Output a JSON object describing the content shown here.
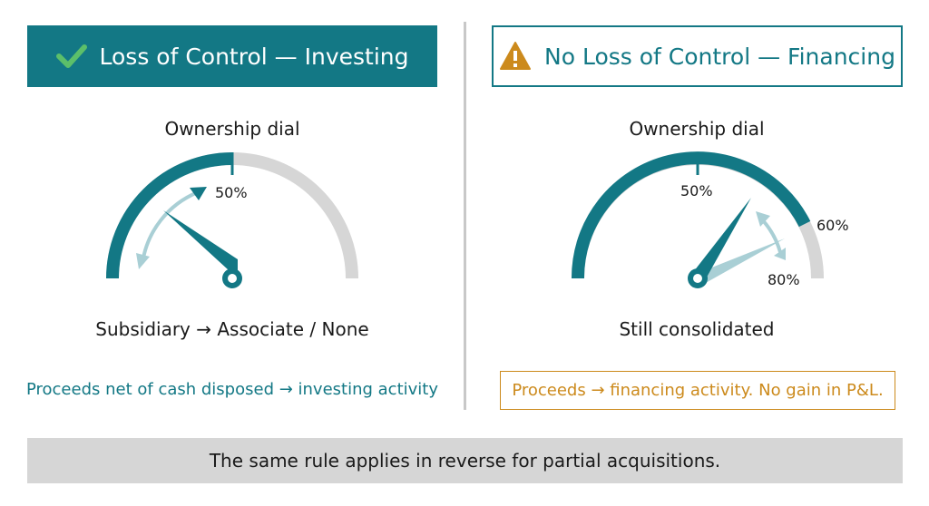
{
  "left": {
    "header": "Loss of Control — Investing",
    "dial_title": "Ownership dial",
    "tick_label": "50%",
    "caption": "Subsidiary → Associate / None",
    "note": "Proceeds net of cash disposed → investing activity",
    "icon": "check-icon"
  },
  "right": {
    "header": "No Loss of Control — Financing",
    "dial_title": "Ownership dial",
    "tick_label": "50%",
    "label_60": "60%",
    "label_80": "80%",
    "caption": "Still consolidated",
    "note": "Proceeds → financing activity. No gain in P&L.",
    "icon": "warning-icon"
  },
  "footer": "The same rule applies in reverse for partial acquisitions.",
  "colors": {
    "teal": "#137885",
    "light_teal": "#a9cfd5",
    "gray_track": "#d6d6d6",
    "orange": "#cc8a1c"
  }
}
